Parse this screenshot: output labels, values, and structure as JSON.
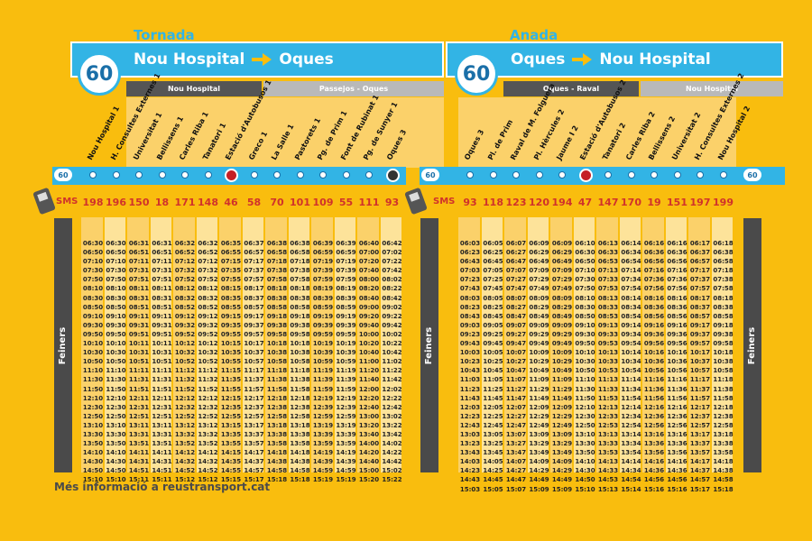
{
  "tornada": {
    "label": "Tornada",
    "route": "60",
    "from": "Nou Hospital",
    "to": "Oques",
    "segments": [
      "Nou Hospital",
      "Passejos - Oques"
    ],
    "stops": [
      "Nou Hospital 1",
      "H. Consultes Externes 1",
      "Universitat 1",
      "Bellissens 1",
      "Carles Riba 1",
      "Tanatori 1",
      "Estació d'Autobusos 1",
      "Greco 1",
      "La Salle 1",
      "Pastorets 1",
      "Pg. de Prim 1",
      "Font de Rubinat 1",
      "Pg. de Sunyer 1",
      "Oques 3"
    ],
    "sms": [
      "198",
      "196",
      "150",
      "18",
      "171",
      "148",
      "46",
      "58",
      "70",
      "101",
      "109",
      "55",
      "111",
      "93"
    ],
    "times": [
      [
        "06:30",
        "06:30",
        "06:31",
        "06:31",
        "06:32",
        "06:32",
        "06:35",
        "06:37",
        "06:38",
        "06:38",
        "06:39",
        "06:39",
        "06:40",
        "06:42"
      ],
      [
        "06:50",
        "06:50",
        "06:51",
        "06:51",
        "06:52",
        "06:52",
        "06:55",
        "06:57",
        "06:58",
        "06:58",
        "06:59",
        "06:59",
        "07:00",
        "07:02"
      ],
      [
        "07:10",
        "07:10",
        "07:11",
        "07:11",
        "07:12",
        "07:12",
        "07:15",
        "07:17",
        "07:18",
        "07:18",
        "07:19",
        "07:19",
        "07:20",
        "07:22"
      ],
      [
        "07:30",
        "07:30",
        "07:31",
        "07:31",
        "07:32",
        "07:32",
        "07:35",
        "07:37",
        "07:38",
        "07:38",
        "07:39",
        "07:39",
        "07:40",
        "07:42"
      ],
      [
        "07:50",
        "07:50",
        "07:51",
        "07:51",
        "07:52",
        "07:52",
        "07:55",
        "07:57",
        "07:58",
        "07:58",
        "07:59",
        "07:59",
        "08:00",
        "08:02"
      ],
      [
        "08:10",
        "08:10",
        "08:11",
        "08:11",
        "08:12",
        "08:12",
        "08:15",
        "08:17",
        "08:18",
        "08:18",
        "08:19",
        "08:19",
        "08:20",
        "08:22"
      ],
      [
        "08:30",
        "08:30",
        "08:31",
        "08:31",
        "08:32",
        "08:32",
        "08:35",
        "08:37",
        "08:38",
        "08:38",
        "08:39",
        "08:39",
        "08:40",
        "08:42"
      ],
      [
        "08:50",
        "08:50",
        "08:51",
        "08:51",
        "08:52",
        "08:52",
        "08:55",
        "08:57",
        "08:58",
        "08:58",
        "08:59",
        "08:59",
        "09:00",
        "09:02"
      ],
      [
        "09:10",
        "09:10",
        "09:11",
        "09:11",
        "09:12",
        "09:12",
        "09:15",
        "09:17",
        "09:18",
        "09:18",
        "09:19",
        "09:19",
        "09:20",
        "09:22"
      ],
      [
        "09:30",
        "09:30",
        "09:31",
        "09:31",
        "09:32",
        "09:32",
        "09:35",
        "09:37",
        "09:38",
        "09:38",
        "09:39",
        "09:39",
        "09:40",
        "09:42"
      ],
      [
        "09:50",
        "09:50",
        "09:51",
        "09:51",
        "09:52",
        "09:52",
        "09:55",
        "09:57",
        "09:58",
        "09:58",
        "09:59",
        "09:59",
        "10:00",
        "10:02"
      ],
      [
        "10:10",
        "10:10",
        "10:11",
        "10:11",
        "10:12",
        "10:12",
        "10:15",
        "10:17",
        "10:18",
        "10:18",
        "10:19",
        "10:19",
        "10:20",
        "10:22"
      ],
      [
        "10:30",
        "10:30",
        "10:31",
        "10:31",
        "10:32",
        "10:32",
        "10:35",
        "10:37",
        "10:38",
        "10:38",
        "10:39",
        "10:39",
        "10:40",
        "10:42"
      ],
      [
        "10:50",
        "10:50",
        "10:51",
        "10:51",
        "10:52",
        "10:52",
        "10:55",
        "10:57",
        "10:58",
        "10:58",
        "10:59",
        "10:59",
        "11:00",
        "11:02"
      ],
      [
        "11:10",
        "11:10",
        "11:11",
        "11:11",
        "11:12",
        "11:12",
        "11:15",
        "11:17",
        "11:18",
        "11:18",
        "11:19",
        "11:19",
        "11:20",
        "11:22"
      ],
      [
        "11:30",
        "11:30",
        "11:31",
        "11:31",
        "11:32",
        "11:32",
        "11:35",
        "11:37",
        "11:38",
        "11:38",
        "11:39",
        "11:39",
        "11:40",
        "11:42"
      ],
      [
        "11:50",
        "11:50",
        "11:51",
        "11:51",
        "11:52",
        "11:52",
        "11:55",
        "11:57",
        "11:58",
        "11:58",
        "11:59",
        "11:59",
        "12:00",
        "12:02"
      ],
      [
        "12:10",
        "12:10",
        "12:11",
        "12:11",
        "12:12",
        "12:12",
        "12:15",
        "12:17",
        "12:18",
        "12:18",
        "12:19",
        "12:19",
        "12:20",
        "12:22"
      ],
      [
        "12:30",
        "12:30",
        "12:31",
        "12:31",
        "12:32",
        "12:32",
        "12:35",
        "12:37",
        "12:38",
        "12:38",
        "12:39",
        "12:39",
        "12:40",
        "12:42"
      ],
      [
        "12:50",
        "12:50",
        "12:51",
        "12:51",
        "12:52",
        "12:52",
        "12:55",
        "12:57",
        "12:58",
        "12:58",
        "12:59",
        "12:59",
        "13:00",
        "13:02"
      ],
      [
        "13:10",
        "13:10",
        "13:11",
        "13:11",
        "13:12",
        "13:12",
        "13:15",
        "13:17",
        "13:18",
        "13:18",
        "13:19",
        "13:19",
        "13:20",
        "13:22"
      ],
      [
        "13:30",
        "13:30",
        "13:31",
        "13:31",
        "13:32",
        "13:32",
        "13:35",
        "13:37",
        "13:38",
        "13:38",
        "13:39",
        "13:39",
        "13:40",
        "13:42"
      ],
      [
        "13:50",
        "13:50",
        "13:51",
        "13:51",
        "13:52",
        "13:52",
        "13:55",
        "13:57",
        "13:58",
        "13:58",
        "13:59",
        "13:59",
        "14:00",
        "14:02"
      ],
      [
        "14:10",
        "14:10",
        "14:11",
        "14:11",
        "14:12",
        "14:12",
        "14:15",
        "14:17",
        "14:18",
        "14:18",
        "14:19",
        "14:19",
        "14:20",
        "14:22"
      ],
      [
        "14:30",
        "14:30",
        "14:31",
        "14:31",
        "14:32",
        "14:32",
        "14:35",
        "14:37",
        "14:38",
        "14:38",
        "14:39",
        "14:39",
        "14:40",
        "14:42"
      ],
      [
        "14:50",
        "14:50",
        "14:51",
        "14:51",
        "14:52",
        "14:52",
        "14:55",
        "14:57",
        "14:58",
        "14:58",
        "14:59",
        "14:59",
        "15:00",
        "15:02"
      ],
      [
        "15:10",
        "15:10",
        "15:11",
        "15:11",
        "15:12",
        "15:12",
        "15:15",
        "15:17",
        "15:18",
        "15:18",
        "15:19",
        "15:19",
        "15:20",
        "15:22"
      ]
    ]
  },
  "anada": {
    "label": "Anada",
    "route": "60",
    "from": "Oques",
    "to": "Nou Hospital",
    "segments": [
      "Oques - Raval",
      "Nou Hospital"
    ],
    "stops": [
      "Oques 3",
      "Pl. de Prim",
      "Raval de M. Folguera",
      "Pl. Hèrcules 2",
      "Jaume I 2",
      "Estació d'Autobusos 2",
      "Tanatori 2",
      "Carles Riba 2",
      "Bellissens 2",
      "Universitat 2",
      "H. Consultes Externes 2",
      "Nou Hospital 2"
    ],
    "sms": [
      "93",
      "118",
      "123",
      "120",
      "194",
      "47",
      "147",
      "170",
      "19",
      "151",
      "197",
      "199"
    ],
    "times": [
      [
        "06:03",
        "06:05",
        "06:07",
        "06:09",
        "06:09",
        "06:10",
        "06:13",
        "06:14",
        "06:16",
        "06:16",
        "06:17",
        "06:18"
      ],
      [
        "06:23",
        "06:25",
        "06:27",
        "06:29",
        "06:29",
        "06:30",
        "06:33",
        "06:34",
        "06:36",
        "06:36",
        "06:37",
        "06:38"
      ],
      [
        "06:43",
        "06:45",
        "06:47",
        "06:49",
        "06:49",
        "06:50",
        "06:53",
        "06:54",
        "06:56",
        "06:56",
        "06:57",
        "06:58"
      ],
      [
        "07:03",
        "07:05",
        "07:07",
        "07:09",
        "07:09",
        "07:10",
        "07:13",
        "07:14",
        "07:16",
        "07:16",
        "07:17",
        "07:18"
      ],
      [
        "07:23",
        "07:25",
        "07:27",
        "07:29",
        "07:29",
        "07:30",
        "07:33",
        "07:34",
        "07:36",
        "07:36",
        "07:37",
        "07:38"
      ],
      [
        "07:43",
        "07:45",
        "07:47",
        "07:49",
        "07:49",
        "07:50",
        "07:53",
        "07:54",
        "07:56",
        "07:56",
        "07:57",
        "07:58"
      ],
      [
        "08:03",
        "08:05",
        "08:07",
        "08:09",
        "08:09",
        "08:10",
        "08:13",
        "08:14",
        "08:16",
        "08:16",
        "08:17",
        "08:18"
      ],
      [
        "08:23",
        "08:25",
        "08:27",
        "08:29",
        "08:29",
        "08:30",
        "08:33",
        "08:34",
        "08:36",
        "08:36",
        "08:37",
        "08:38"
      ],
      [
        "08:43",
        "08:45",
        "08:47",
        "08:49",
        "08:49",
        "08:50",
        "08:53",
        "08:54",
        "08:56",
        "08:56",
        "08:57",
        "08:58"
      ],
      [
        "09:03",
        "09:05",
        "09:07",
        "09:09",
        "09:09",
        "09:10",
        "09:13",
        "09:14",
        "09:16",
        "09:16",
        "09:17",
        "09:18"
      ],
      [
        "09:23",
        "09:25",
        "09:27",
        "09:29",
        "09:29",
        "09:30",
        "09:33",
        "09:34",
        "09:36",
        "09:36",
        "09:37",
        "09:38"
      ],
      [
        "09:43",
        "09:45",
        "09:47",
        "09:49",
        "09:49",
        "09:50",
        "09:53",
        "09:54",
        "09:56",
        "09:56",
        "09:57",
        "09:58"
      ],
      [
        "10:03",
        "10:05",
        "10:07",
        "10:09",
        "10:09",
        "10:10",
        "10:13",
        "10:14",
        "10:16",
        "10:16",
        "10:17",
        "10:18"
      ],
      [
        "10:23",
        "10:25",
        "10:27",
        "10:29",
        "10:29",
        "10:30",
        "10:33",
        "10:34",
        "10:36",
        "10:36",
        "10:37",
        "10:38"
      ],
      [
        "10:43",
        "10:45",
        "10:47",
        "10:49",
        "10:49",
        "10:50",
        "10:53",
        "10:54",
        "10:56",
        "10:56",
        "10:57",
        "10:58"
      ],
      [
        "11:03",
        "11:05",
        "11:07",
        "11:09",
        "11:09",
        "11:10",
        "11:13",
        "11:14",
        "11:16",
        "11:16",
        "11:17",
        "11:18"
      ],
      [
        "11:23",
        "11:25",
        "11:27",
        "11:29",
        "11:29",
        "11:30",
        "11:33",
        "11:34",
        "11:36",
        "11:36",
        "11:37",
        "11:38"
      ],
      [
        "11:43",
        "11:45",
        "11:47",
        "11:49",
        "11:49",
        "11:50",
        "11:53",
        "11:54",
        "11:56",
        "11:56",
        "11:57",
        "11:58"
      ],
      [
        "12:03",
        "12:05",
        "12:07",
        "12:09",
        "12:09",
        "12:10",
        "12:13",
        "12:14",
        "12:16",
        "12:16",
        "12:17",
        "12:18"
      ],
      [
        "12:23",
        "12:25",
        "12:27",
        "12:29",
        "12:29",
        "12:30",
        "12:33",
        "12:34",
        "12:36",
        "12:36",
        "12:37",
        "12:38"
      ],
      [
        "12:43",
        "12:45",
        "12:47",
        "12:49",
        "12:49",
        "12:50",
        "12:53",
        "12:54",
        "12:56",
        "12:56",
        "12:57",
        "12:58"
      ],
      [
        "13:03",
        "13:05",
        "13:07",
        "13:09",
        "13:09",
        "13:10",
        "13:13",
        "13:14",
        "13:16",
        "13:16",
        "13:17",
        "13:18"
      ],
      [
        "13:23",
        "13:25",
        "13:27",
        "13:29",
        "13:29",
        "13:30",
        "13:33",
        "13:34",
        "13:36",
        "13:36",
        "13:37",
        "13:38"
      ],
      [
        "13:43",
        "13:45",
        "13:47",
        "13:49",
        "13:49",
        "13:50",
        "13:53",
        "13:54",
        "13:56",
        "13:56",
        "13:57",
        "13:58"
      ],
      [
        "14:03",
        "14:05",
        "14:07",
        "14:09",
        "14:09",
        "14:10",
        "14:13",
        "14:14",
        "14:16",
        "14:16",
        "14:17",
        "14:18"
      ],
      [
        "14:23",
        "14:25",
        "14:27",
        "14:29",
        "14:29",
        "14:30",
        "14:33",
        "14:34",
        "14:36",
        "14:36",
        "14:37",
        "14:38"
      ],
      [
        "14:43",
        "14:45",
        "14:47",
        "14:49",
        "14:49",
        "14:50",
        "14:53",
        "14:54",
        "14:56",
        "14:56",
        "14:57",
        "14:58"
      ],
      [
        "15:03",
        "15:05",
        "15:07",
        "15:09",
        "15:09",
        "15:10",
        "15:13",
        "15:14",
        "15:16",
        "15:16",
        "15:17",
        "15:18"
      ]
    ]
  },
  "sms_label": "SMS",
  "day_type": "Feiners",
  "footer": "Més informació a reustransport.cat",
  "colors": {
    "background": "#f9bd0e",
    "accent": "#32b4e5",
    "sms": "#d0322b"
  }
}
